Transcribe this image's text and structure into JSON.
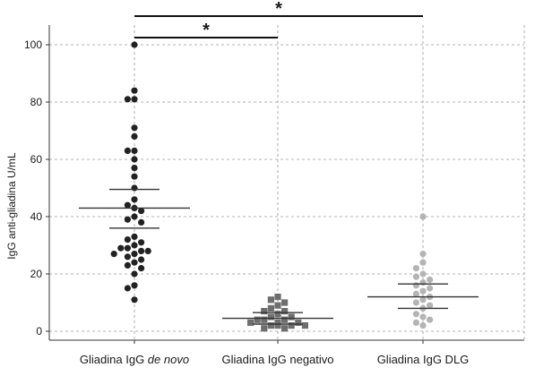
{
  "chart_data": {
    "type": "scatter",
    "subtype": "dot-plot with mean and SEM bars",
    "title": "",
    "xlabel": "",
    "ylabel": "IgG anti-gliadina U/mL",
    "ylim": [
      0,
      100
    ],
    "yticks": [
      0,
      20,
      40,
      60,
      80,
      100
    ],
    "grid": true,
    "categories": [
      {
        "prefix": "Gliadina IgG ",
        "italic": "de novo",
        "suffix": ""
      },
      {
        "prefix": "Gliadina IgG negativo",
        "italic": "",
        "suffix": ""
      },
      {
        "prefix": "Gliadina IgG DLG",
        "italic": "",
        "suffix": ""
      }
    ],
    "series": [
      {
        "marker": "circle",
        "color": "#222222",
        "values": [
          100,
          84,
          81,
          81,
          71,
          68,
          63,
          63,
          60,
          57,
          54,
          50,
          46,
          44,
          43,
          42,
          40,
          39,
          38,
          33,
          32,
          31,
          30,
          29,
          29,
          28,
          28,
          27,
          27,
          26,
          25,
          24,
          23,
          22,
          20,
          16,
          15,
          11
        ],
        "mean": 43,
        "error_upper": 49.5,
        "error_lower": 36
      },
      {
        "marker": "square",
        "color": "#6e6e6e",
        "values": [
          12,
          11,
          10,
          9,
          8,
          7,
          7,
          6,
          5,
          5,
          4,
          4,
          4,
          3,
          3,
          3,
          2,
          2,
          2,
          2,
          1,
          1
        ],
        "mean": 4.5,
        "error_upper": 6.5,
        "error_lower": 2.5
      },
      {
        "marker": "circle",
        "color": "#b4b4b4",
        "values": [
          40,
          27,
          24,
          22,
          20,
          19,
          18,
          17,
          16,
          15,
          14,
          13,
          12,
          11,
          10,
          9,
          8,
          6,
          5,
          4,
          3,
          2
        ],
        "mean": 12,
        "error_upper": 16.5,
        "error_lower": 8
      }
    ],
    "significance": [
      {
        "from": 0,
        "to": 2,
        "label": "*"
      },
      {
        "from": 0,
        "to": 1,
        "label": "*"
      }
    ]
  }
}
